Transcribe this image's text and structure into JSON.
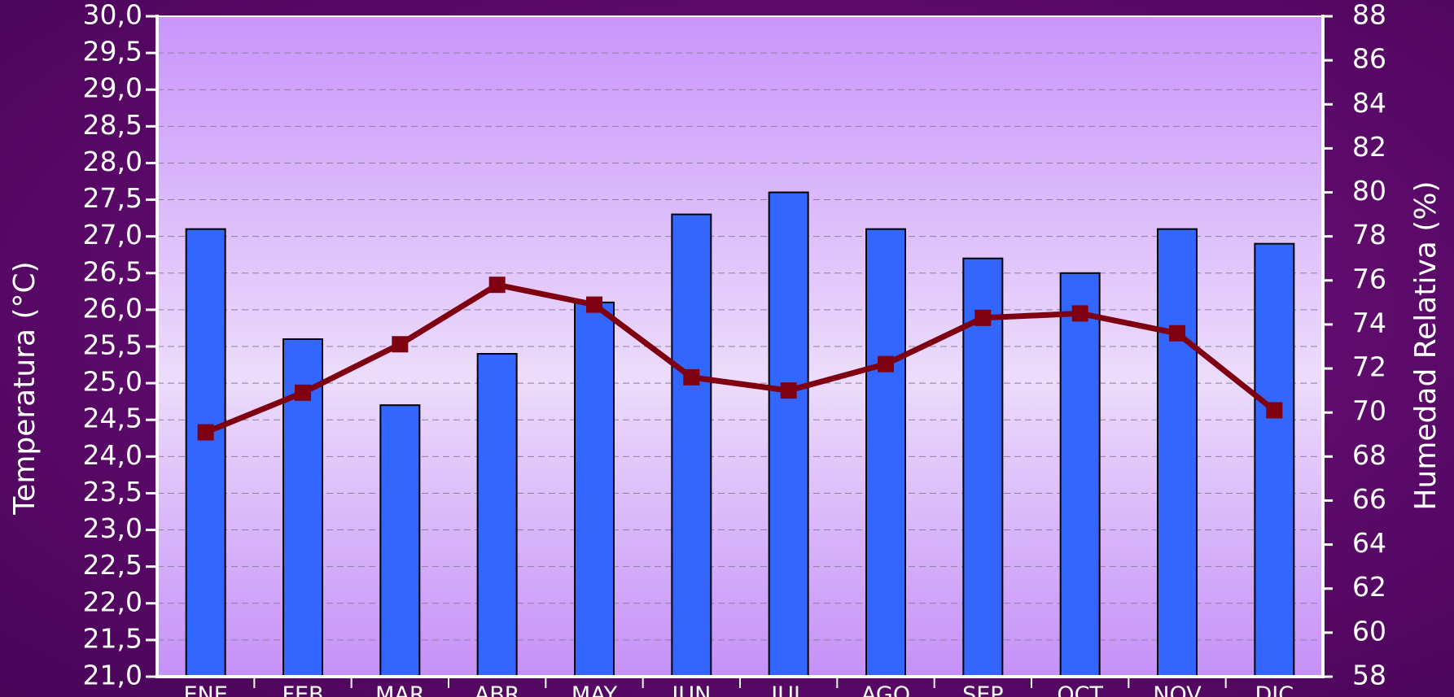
{
  "chart_data": {
    "type": "bar+line",
    "categories": [
      "ENE",
      "FEB",
      "MAR",
      "ABR",
      "MAY",
      "JUN",
      "JUL",
      "AGO",
      "SEP",
      "OCT",
      "NOV",
      "DIC"
    ],
    "series": [
      {
        "axis": "left",
        "kind": "bar",
        "color": "#3366ff",
        "values": [
          27.1,
          25.6,
          24.7,
          25.4,
          26.1,
          27.3,
          27.6,
          27.1,
          26.7,
          26.5,
          27.1,
          26.9
        ]
      },
      {
        "axis": "right",
        "kind": "line",
        "color": "#7f0010",
        "values": [
          69.1,
          70.9,
          73.1,
          75.8,
          74.9,
          71.6,
          71.0,
          72.2,
          74.3,
          74.5,
          73.6,
          70.1
        ]
      }
    ],
    "ylabel": "Temperatura (°C)",
    "y2label": "Humedad Relativa (%)",
    "ylim": [
      21.0,
      30.0
    ],
    "y2lim": [
      58,
      88
    ],
    "yticks": [
      "21,0",
      "21,5",
      "22,0",
      "22,5",
      "23,0",
      "23,5",
      "24,0",
      "24,5",
      "25,0",
      "25,5",
      "26,0",
      "26,5",
      "27,0",
      "27,5",
      "28,0",
      "28,5",
      "29,0",
      "29,5",
      "30,0"
    ],
    "y2ticks": [
      "58",
      "60",
      "62",
      "64",
      "66",
      "68",
      "70",
      "72",
      "74",
      "76",
      "78",
      "80",
      "82",
      "84",
      "86",
      "88"
    ],
    "grid": true,
    "legend": "none"
  }
}
